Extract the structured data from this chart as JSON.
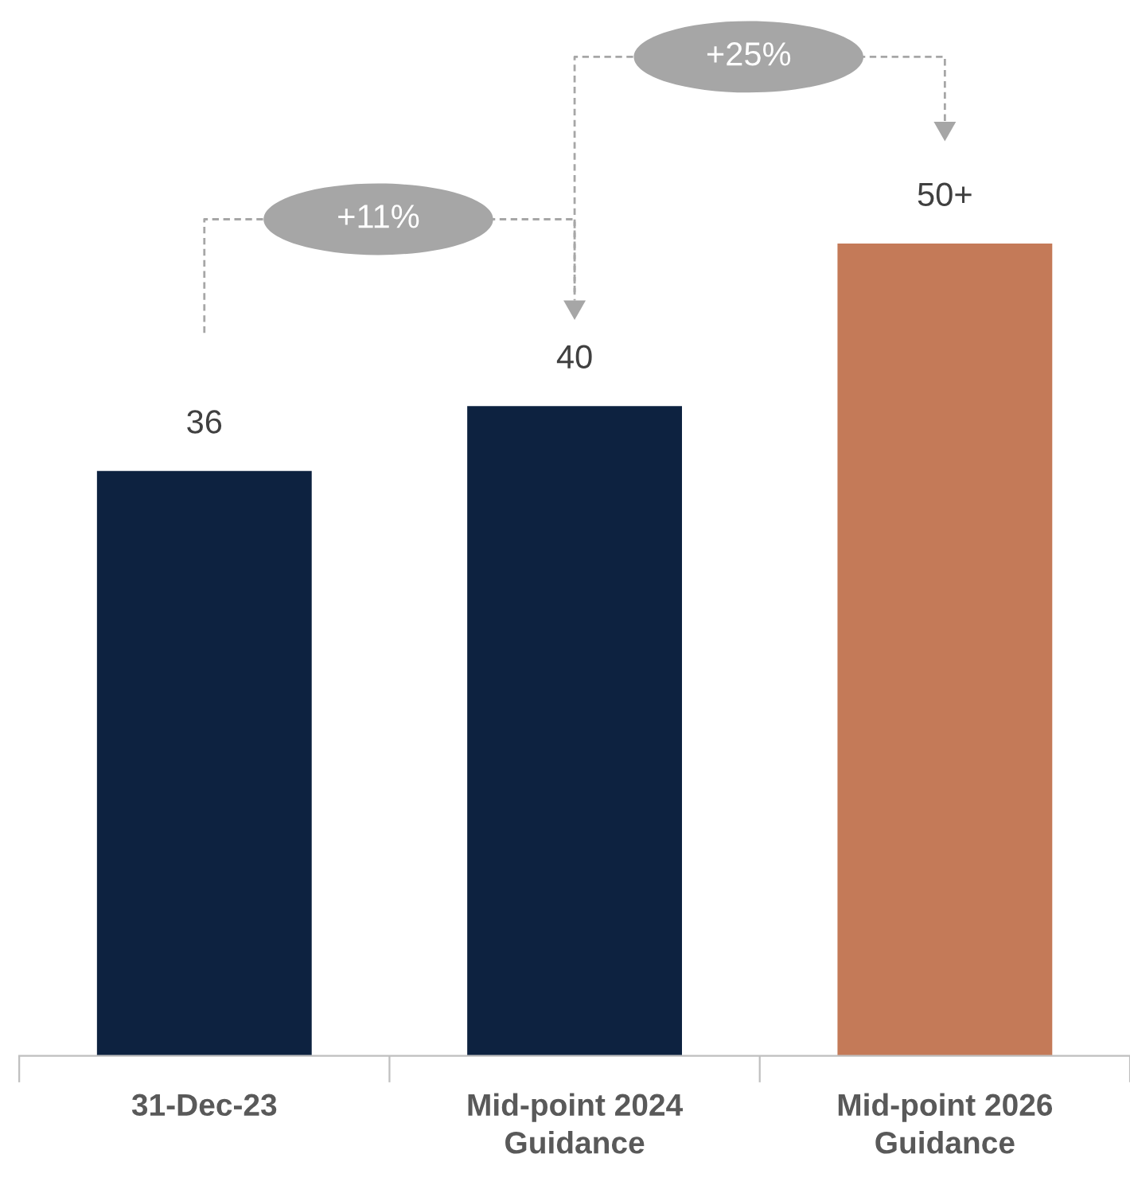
{
  "chart_data": {
    "type": "bar",
    "categories": [
      "31-Dec-23",
      "Mid-point 2024\nGuidance",
      "Mid-point 2026\nGuidance"
    ],
    "values": [
      36,
      40,
      50
    ],
    "colors": [
      "#0d2240",
      "#0d2240",
      "#c47a58"
    ],
    "value_labels": [
      "36",
      "40",
      "50+"
    ],
    "annotations": [
      "+11%",
      "+25%"
    ],
    "grid": false,
    "legend": false
  }
}
